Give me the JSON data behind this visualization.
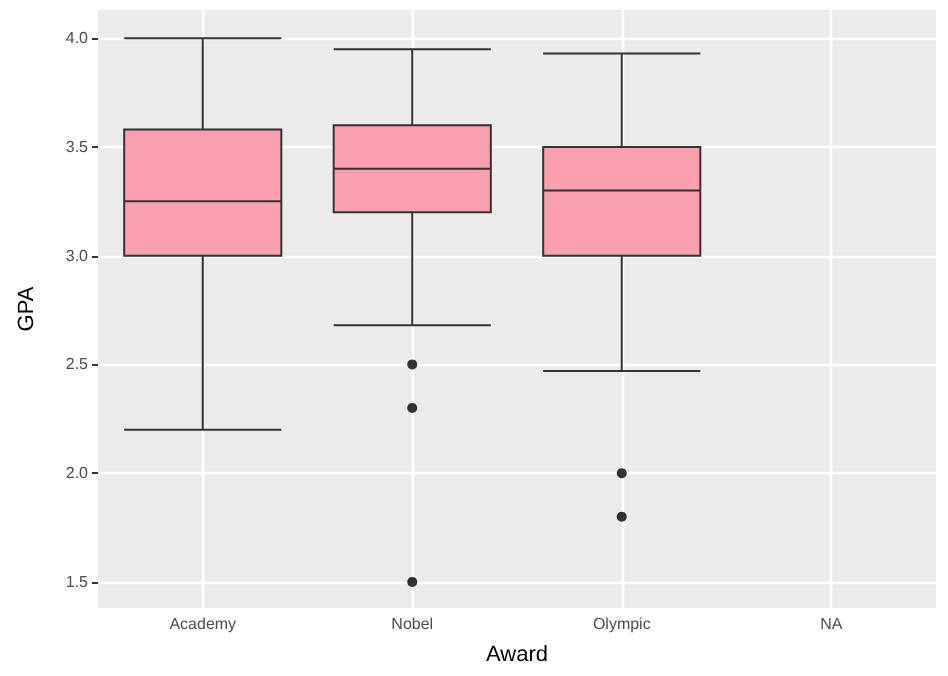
{
  "chart_data": {
    "type": "box",
    "xlabel": "Award",
    "ylabel": "GPA",
    "categories": [
      "Academy",
      "Nobel",
      "Olympic",
      "NA"
    ],
    "color": "#f99faf",
    "boxes": [
      {
        "low": 2.2,
        "q1": 3.0,
        "median": 3.25,
        "q3": 3.58,
        "high": 4.0
      },
      {
        "low": 2.68,
        "q1": 3.2,
        "median": 3.4,
        "q3": 3.6,
        "high": 3.95,
        "outliers": [
          2.5,
          2.3,
          1.5
        ]
      },
      {
        "low": 2.47,
        "q1": 3.0,
        "median": 3.3,
        "q3": 3.5,
        "high": 3.93,
        "outliers": [
          2.0,
          1.8
        ]
      },
      null
    ],
    "ylim": [
      1.38,
      4.13
    ],
    "yticks": [
      1.5,
      {
        "value": 2,
        "label": "2.0"
      },
      2.5,
      {
        "value": 3,
        "label": "3.0"
      },
      3.5,
      {
        "value": 4,
        "label": "4.0"
      }
    ],
    "grid": true
  }
}
